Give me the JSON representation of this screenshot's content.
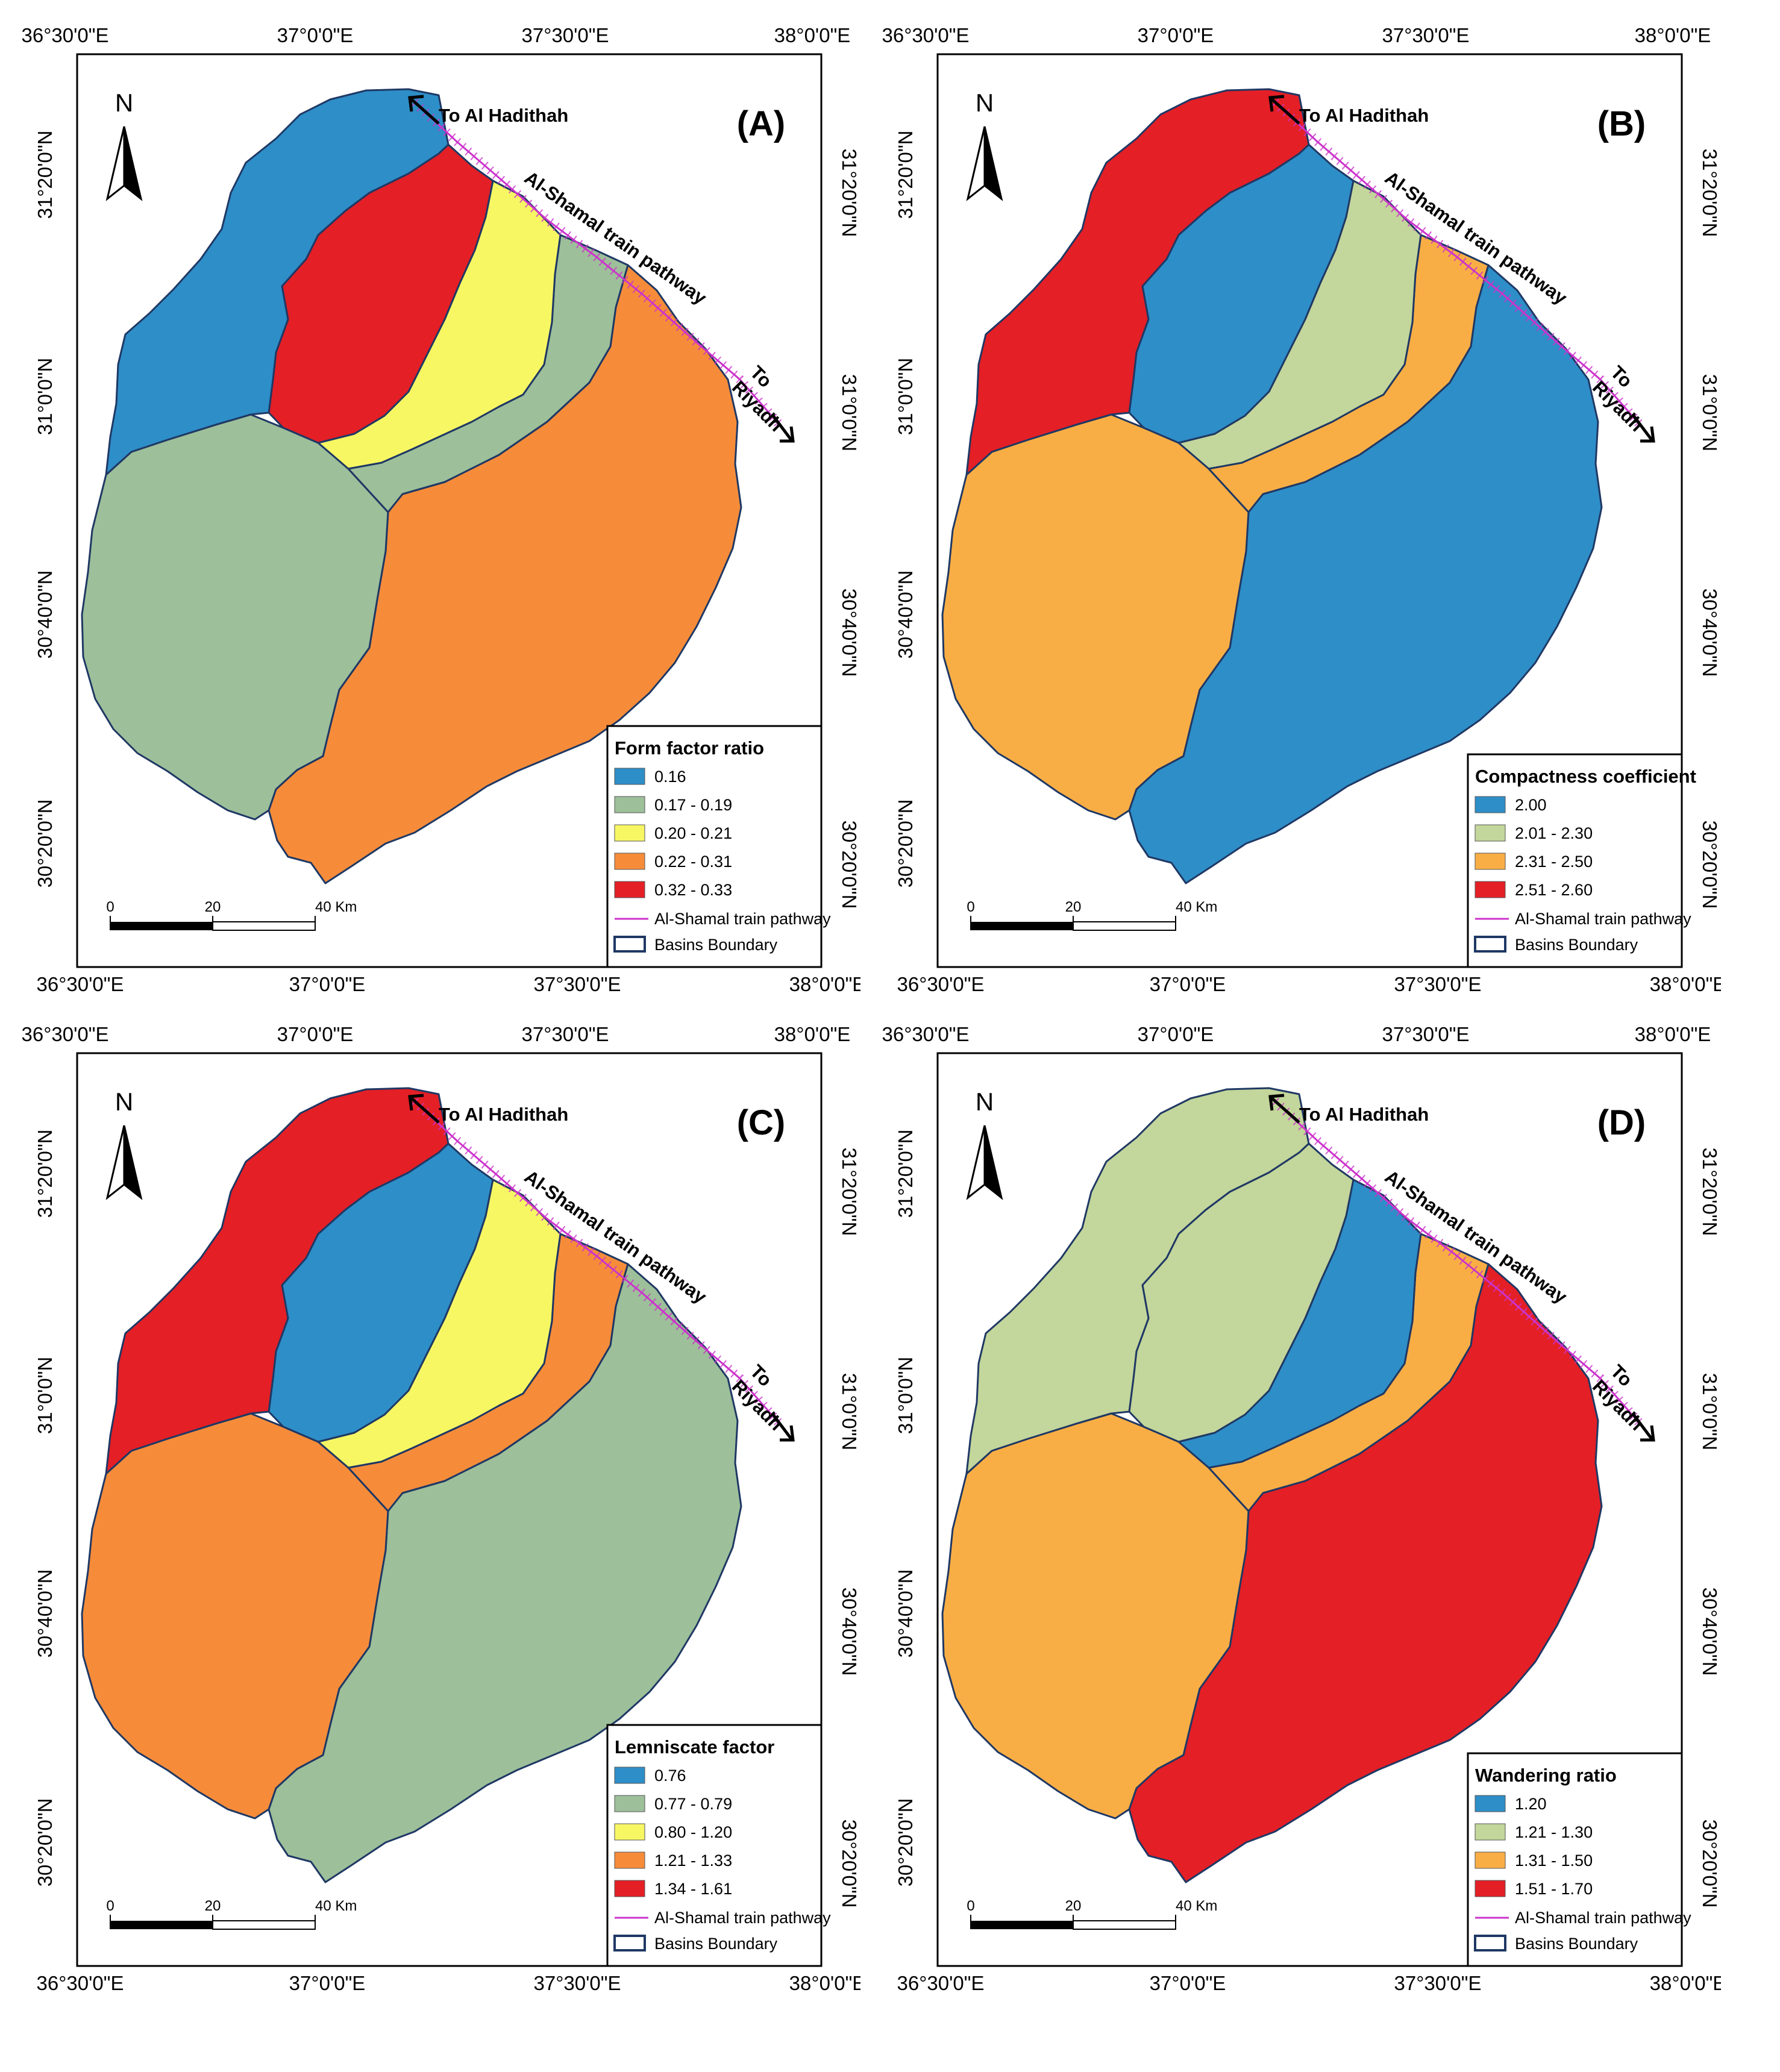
{
  "panels": [
    {
      "id": "A",
      "label": "(A)",
      "legend_title": "Form factor ratio",
      "classes": [
        {
          "label": "0.16",
          "color": "#2E8EC8"
        },
        {
          "label": "0.17 - 0.19",
          "color": "#9DBF9A"
        },
        {
          "label": "0.20 - 0.21",
          "color": "#F7F764"
        },
        {
          "label": "0.22 - 0.31",
          "color": "#F68C3A"
        },
        {
          "label": "0.32 - 0.33",
          "color": "#E41F26"
        }
      ],
      "basin_colors": {
        "nw": "#2E8EC8",
        "n": "#E41F26",
        "ne": "#F7F764",
        "ne2": "#9DBF9A",
        "w": "#9DBF9A",
        "e": "#F68C3A"
      }
    },
    {
      "id": "B",
      "label": "(B)",
      "legend_title": "Compactness coefficient",
      "classes": [
        {
          "label": "2.00",
          "color": "#2E8EC8"
        },
        {
          "label": "2.01 - 2.30",
          "color": "#C3D69B"
        },
        {
          "label": "2.31 - 2.50",
          "color": "#F9AE45"
        },
        {
          "label": "2.51 - 2.60",
          "color": "#E41F26"
        }
      ],
      "basin_colors": {
        "nw": "#E41F26",
        "n": "#2E8EC8",
        "ne": "#C3D69B",
        "ne2": "#F9AE45",
        "w": "#F9AE45",
        "e": "#2E8EC8"
      }
    },
    {
      "id": "C",
      "label": "(C)",
      "legend_title": "Lemniscate factor",
      "classes": [
        {
          "label": "0.76",
          "color": "#2E8EC8"
        },
        {
          "label": "0.77 - 0.79",
          "color": "#9DBF9A"
        },
        {
          "label": "0.80 - 1.20",
          "color": "#F7F764"
        },
        {
          "label": "1.21 - 1.33",
          "color": "#F68C3A"
        },
        {
          "label": "1.34 - 1.61",
          "color": "#E41F26"
        }
      ],
      "basin_colors": {
        "nw": "#E41F26",
        "n": "#2E8EC8",
        "ne": "#F7F764",
        "ne2": "#F68C3A",
        "w": "#F68C3A",
        "e": "#9DBF9A"
      }
    },
    {
      "id": "D",
      "label": "(D)",
      "legend_title": "Wandering ratio",
      "classes": [
        {
          "label": "1.20",
          "color": "#2E8EC8"
        },
        {
          "label": "1.21 - 1.30",
          "color": "#C3D69B"
        },
        {
          "label": "1.31 - 1.50",
          "color": "#F9AE45"
        },
        {
          "label": "1.51 - 1.70",
          "color": "#E41F26"
        }
      ],
      "basin_colors": {
        "nw": "#C3D69B",
        "n": "#C3D69B",
        "ne": "#2E8EC8",
        "ne2": "#F9AE45",
        "w": "#F9AE45",
        "e": "#E41F26"
      }
    }
  ],
  "common": {
    "lon_labels": [
      "36°30'0\"E",
      "37°0'0\"E",
      "37°30'0\"E",
      "38°0'0\"E"
    ],
    "lat_labels": [
      "31°20'0\"N",
      "31°0'0\"N",
      "30°40'0\"N",
      "30°20'0\"N"
    ],
    "north_label": "N",
    "to_al_hadithah": "To Al Hadithah",
    "pathway_label": "Al-Shamal train pathway",
    "to_label": "To",
    "riyadh_label": "Riyadh",
    "train_legend_label": "Al-Shamal train pathway",
    "boundary_legend_label": "Basins Boundary",
    "scale_ticks": [
      "0",
      "20",
      "40 Km"
    ],
    "boundary_color": "#1F3864",
    "train_color": "#CC33CC"
  }
}
